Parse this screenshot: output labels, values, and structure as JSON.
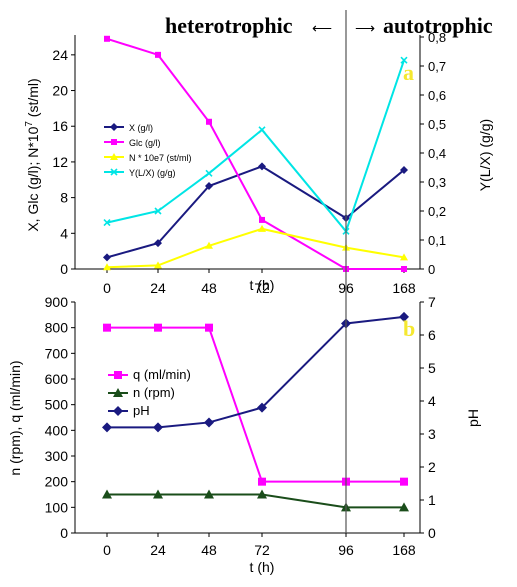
{
  "header": {
    "left": "heterotrophic",
    "right": "autotrophic",
    "arrow_left": "⟵",
    "arrow_right": "⟶"
  },
  "chart_data": [
    {
      "panel": "a",
      "type": "line",
      "categories": [
        "0",
        "24",
        "48",
        "72",
        "96",
        "168"
      ],
      "xlabel": "t (h)",
      "ylabel_left": "X, Glc (g/l); N*10^7 (st/ml)",
      "ylabel_right": "Y(L/X) (g/g)",
      "ylim_left": [
        0,
        26
      ],
      "yticks_left": [
        "0",
        "4",
        "8",
        "12",
        "16",
        "20",
        "24"
      ],
      "ylim_right": [
        0,
        0.8
      ],
      "yticks_right": [
        "0",
        "0,1",
        "0,2",
        "0,3",
        "0,4",
        "0,5",
        "0,6",
        "0,7",
        "0,8"
      ],
      "vertical_marker": "96",
      "legend_position": "left",
      "series": [
        {
          "name": "X (g/l)",
          "axis": "left",
          "color": "#1a1a80",
          "marker": "diamond",
          "values": [
            1.3,
            2.9,
            9.3,
            11.5,
            5.7,
            11.1
          ]
        },
        {
          "name": "Glc (g/l)",
          "axis": "left",
          "color": "#ff00ff",
          "marker": "square",
          "values": [
            25.8,
            24.0,
            16.5,
            5.5,
            0.0,
            0.0
          ]
        },
        {
          "name": "N * 10e7 (st/ml)",
          "axis": "left",
          "color": "#ffff00",
          "marker": "triangle",
          "values": [
            0.2,
            0.4,
            2.6,
            4.5,
            2.4,
            1.3
          ]
        },
        {
          "name": "Y(L/X) (g/g)",
          "axis": "right",
          "color": "#00e5e5",
          "marker": "x",
          "values": [
            0.16,
            0.2,
            0.33,
            0.48,
            0.13,
            0.72
          ]
        }
      ]
    },
    {
      "panel": "b",
      "type": "line",
      "categories": [
        "0",
        "24",
        "48",
        "72",
        "96",
        "168"
      ],
      "xlabel": "t (h)",
      "ylabel_left": "n (rpm), q (ml/min)",
      "ylabel_right": "pH",
      "ylim_left": [
        0,
        900
      ],
      "yticks_left": [
        "0",
        "100",
        "200",
        "300",
        "400",
        "500",
        "600",
        "700",
        "800",
        "900"
      ],
      "ylim_right": [
        0,
        7
      ],
      "yticks_right": [
        "0",
        "1",
        "2",
        "3",
        "4",
        "5",
        "6",
        "7"
      ],
      "vertical_marker": "96",
      "legend_position": "left",
      "series": [
        {
          "name": "q (ml/min)",
          "axis": "left",
          "color": "#ff00ff",
          "marker": "square",
          "values": [
            800,
            800,
            800,
            200,
            200,
            200
          ]
        },
        {
          "name": "n (rpm)",
          "axis": "left",
          "color": "#1a4d1a",
          "marker": "triangle",
          "values": [
            150,
            150,
            150,
            150,
            100,
            100
          ]
        },
        {
          "name": "pH",
          "axis": "right",
          "color": "#1a1a80",
          "marker": "diamond",
          "values": [
            3.2,
            3.2,
            3.35,
            3.8,
            6.35,
            6.55
          ]
        }
      ]
    }
  ],
  "panel_tags": [
    "a",
    "b"
  ]
}
